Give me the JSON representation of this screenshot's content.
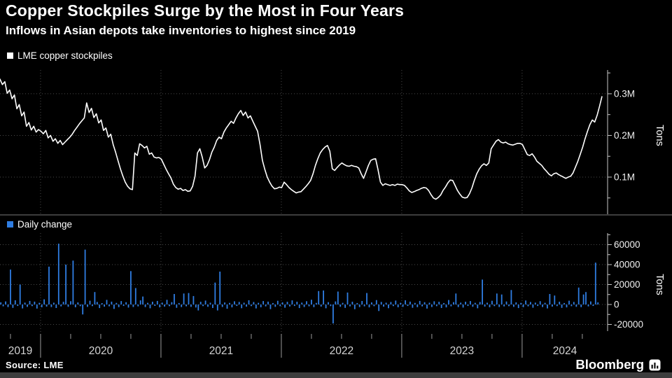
{
  "header": {
    "title": "Copper Stockpiles Surge by the Most in Four Years",
    "subtitle": "Inflows in Asian depots take inventories to highest since 2019"
  },
  "source": "Source: LME",
  "brand": {
    "name": "Bloomberg",
    "icon": "bar-chart-logo-icon"
  },
  "colors": {
    "background": "#000000",
    "line": "#ffffff",
    "bars": "#2f7de2",
    "grid": "#4a4a4a",
    "axis": "#c8c8c8",
    "tick_label": "#f0f0f0",
    "year_label": "#d5d5d5",
    "year_separator": "#9a9a9a",
    "divider": "#3d3d3d",
    "footer_strip": "#3d3d3d"
  },
  "x_axis": {
    "start_year_decimal": 2019.663,
    "end_year_decimal": 2024.71,
    "year_boundaries": [
      2020,
      2021,
      2022,
      2023,
      2024
    ],
    "year_labels": [
      "2019",
      "2020",
      "2021",
      "2022",
      "2023",
      "2024"
    ],
    "quarter_tick_step": 0.25
  },
  "chart_data": [
    {
      "type": "line",
      "title": "LME copper stockpiles",
      "ylabel": "Tons",
      "color": "#ffffff",
      "unit": "kilotons",
      "ylim_kilotons": [
        11,
        357
      ],
      "yticks": [
        {
          "value": 100,
          "label": "0.1M"
        },
        {
          "value": 200,
          "label": "0.2M"
        },
        {
          "value": 300,
          "label": "0.3M"
        }
      ],
      "minor_ticks": [
        50,
        150,
        250,
        350
      ],
      "x_start": 2019.663,
      "x_step": 0.02,
      "values_kilotons": [
        335,
        322,
        329,
        301,
        309,
        288,
        297,
        264,
        274,
        247,
        256,
        222,
        231,
        213,
        222,
        208,
        214,
        210,
        204,
        212,
        194,
        200,
        186,
        192,
        181,
        188,
        178,
        184,
        190,
        196,
        203,
        212,
        220,
        228,
        235,
        242,
        278,
        255,
        265,
        243,
        252,
        230,
        237,
        212,
        218,
        196,
        203,
        178,
        160,
        140,
        120,
        103,
        88,
        78,
        72,
        70,
        158,
        152,
        180,
        176,
        170,
        174,
        155,
        158,
        148,
        146,
        147,
        143,
        131,
        119,
        108,
        98,
        83,
        75,
        71,
        73,
        68,
        70,
        66,
        67,
        78,
        102,
        158,
        168,
        148,
        122,
        128,
        142,
        160,
        172,
        188,
        196,
        192,
        208,
        218,
        226,
        234,
        229,
        242,
        252,
        260,
        248,
        256,
        242,
        247,
        234,
        222,
        210,
        178,
        140,
        118,
        100,
        88,
        78,
        72,
        73,
        76,
        75,
        88,
        82,
        75,
        70,
        66,
        62,
        64,
        65,
        71,
        77,
        84,
        92,
        108,
        128,
        144,
        158,
        166,
        172,
        176,
        162,
        120,
        116,
        123,
        129,
        134,
        130,
        127,
        126,
        128,
        126,
        125,
        122,
        108,
        97,
        112,
        128,
        140,
        143,
        144,
        118,
        88,
        80,
        84,
        82,
        80,
        82,
        80,
        83,
        82,
        82,
        80,
        74,
        67,
        63,
        65,
        68,
        70,
        73,
        75,
        74,
        68,
        58,
        50,
        47,
        51,
        57,
        68,
        76,
        86,
        93,
        92,
        80,
        68,
        59,
        52,
        50,
        51,
        60,
        74,
        92,
        108,
        119,
        127,
        132,
        128,
        134,
        168,
        177,
        186,
        190,
        184,
        182,
        184,
        180,
        178,
        177,
        179,
        181,
        181,
        178,
        166,
        154,
        152,
        156,
        148,
        138,
        133,
        128,
        120,
        114,
        107,
        103,
        108,
        110,
        106,
        103,
        100,
        97,
        100,
        102,
        110,
        124,
        138,
        155,
        172,
        192,
        210,
        226,
        237,
        232,
        248,
        270,
        293
      ]
    },
    {
      "type": "bar",
      "title": "Daily change",
      "ylabel": "Tons",
      "color": "#2f7de2",
      "unit": "tons",
      "ylim": [
        -31600,
        71600
      ],
      "yticks": [
        {
          "value": -20000,
          "label": "-20000"
        },
        {
          "value": 0,
          "label": "0"
        },
        {
          "value": 20000,
          "label": "20000"
        },
        {
          "value": 40000,
          "label": "40000"
        },
        {
          "value": 60000,
          "label": "60000"
        }
      ],
      "minor_ticks": [
        -10000,
        10000,
        30000,
        50000,
        70000
      ],
      "x_start": 2019.67,
      "x_step": 0.02,
      "values": [
        2200,
        -1800,
        3100,
        -2600,
        35000,
        -3400,
        4200,
        -1500,
        20000,
        -3900,
        1900,
        -2400,
        3600,
        -1600,
        2900,
        -4100,
        1700,
        -2800,
        5200,
        -2100,
        38000,
        -2600,
        1800,
        -3500,
        61000,
        -1900,
        2700,
        40000,
        -2300,
        3300,
        44000,
        -2800,
        2100,
        -1700,
        -10000,
        55000,
        -2400,
        3800,
        -1600,
        12500,
        2600,
        -3600,
        1400,
        -2200,
        4600,
        -1800,
        2900,
        -4400,
        1600,
        -2700,
        3400,
        -1500,
        2300,
        -3100,
        33500,
        -2500,
        16500,
        -1900,
        4100,
        8000,
        -2600,
        1700,
        -3800,
        2800,
        -1400,
        3600,
        -2900,
        1900,
        -2100,
        4700,
        -1700,
        2400,
        10500,
        -3300,
        1500,
        -2600,
        11000,
        -1800,
        11500,
        -2400,
        8500,
        -3000,
        -6000,
        2700,
        -1600,
        3900,
        -2300,
        1800,
        -3500,
        22000,
        -6000,
        33000,
        -2500,
        2000,
        -4200,
        1600,
        -2900,
        3200,
        -1500,
        2600,
        -3700,
        1800,
        -2200,
        4300,
        -1600,
        2500,
        -3900,
        1700,
        -2800,
        3400,
        -1900,
        2900,
        -4600,
        1500,
        -2400,
        3700,
        -1700,
        2200,
        -3200,
        2700,
        -2000,
        4100,
        -1500,
        2800,
        -3600,
        1900,
        -2500,
        3300,
        -1800,
        4800,
        -2700,
        1600,
        13500,
        -2100,
        14000,
        -3800,
        2400,
        -1600,
        -19000,
        3100,
        13000,
        -2300,
        1700,
        -3400,
        12000,
        -1900,
        2800,
        -4700,
        1500,
        -2600,
        3500,
        -1800,
        11500,
        -2900,
        2100,
        -1700,
        4400,
        -6500,
        2600,
        -2200,
        1800,
        -3700,
        2500,
        -1600,
        3900,
        -2800,
        1700,
        -2400,
        4200,
        -1500,
        2900,
        -3300,
        1600,
        -2700,
        3600,
        -1900,
        2300,
        -4100,
        1800,
        -2500,
        3200,
        -1700,
        2700,
        -3500,
        1500,
        -2900,
        4500,
        -1800,
        2400,
        11000,
        -2600,
        1900,
        -3100,
        2800,
        -1500,
        3400,
        -2300,
        1700,
        -3800,
        2600,
        25000,
        -2100,
        1800,
        -2800,
        3700,
        -1600,
        11000,
        -2500,
        10000,
        -1900,
        3000,
        -1700,
        14500,
        -2400,
        2200,
        -3600,
        1600,
        -2700,
        4000,
        -1800,
        2500,
        -3200,
        1900,
        -1500,
        3300,
        -2600,
        1700,
        -3900,
        10500,
        -2100,
        9000,
        -1600,
        2800,
        -3400,
        1500,
        -2900,
        3800,
        -1700,
        2600,
        -2300,
        17000,
        -2700,
        10000,
        12500,
        -1900,
        3100,
        -1500,
        42000,
        2200
      ]
    }
  ]
}
